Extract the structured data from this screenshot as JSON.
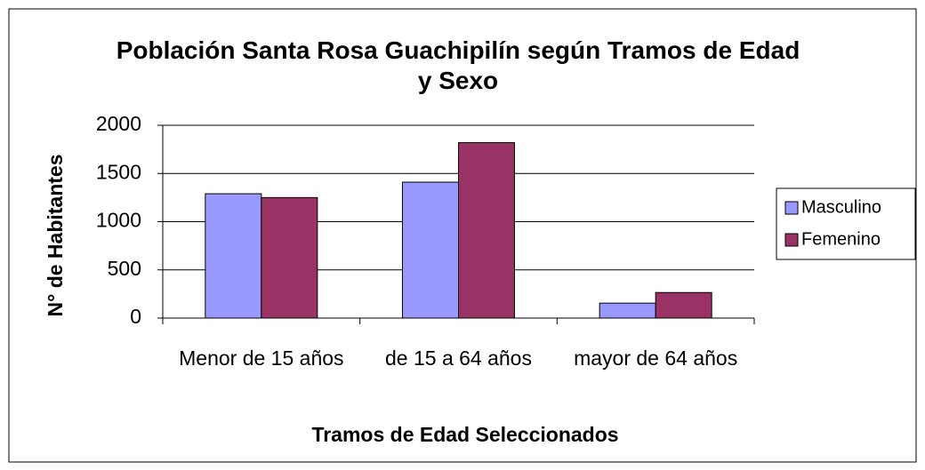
{
  "chart_data": {
    "type": "bar",
    "title": "Población Santa Rosa Guachipilín según Tramos de Edad y Sexo",
    "x_label": "Tramos de Edad Seleccionados",
    "y_label": "N° de Habitantes",
    "categories": [
      "Menor de 15 años",
      "de 15 a 64 años",
      "mayor de 64 años"
    ],
    "series": [
      {
        "name": "Masculino",
        "color": "#9999ff",
        "values": [
          1290,
          1410,
          155
        ]
      },
      {
        "name": "Femenino",
        "color": "#993366",
        "values": [
          1250,
          1820,
          265
        ]
      }
    ],
    "ylim": [
      0,
      2000
    ],
    "yticks": [
      0,
      500,
      1000,
      1500,
      2000
    ],
    "grid": true,
    "legend": "right"
  }
}
